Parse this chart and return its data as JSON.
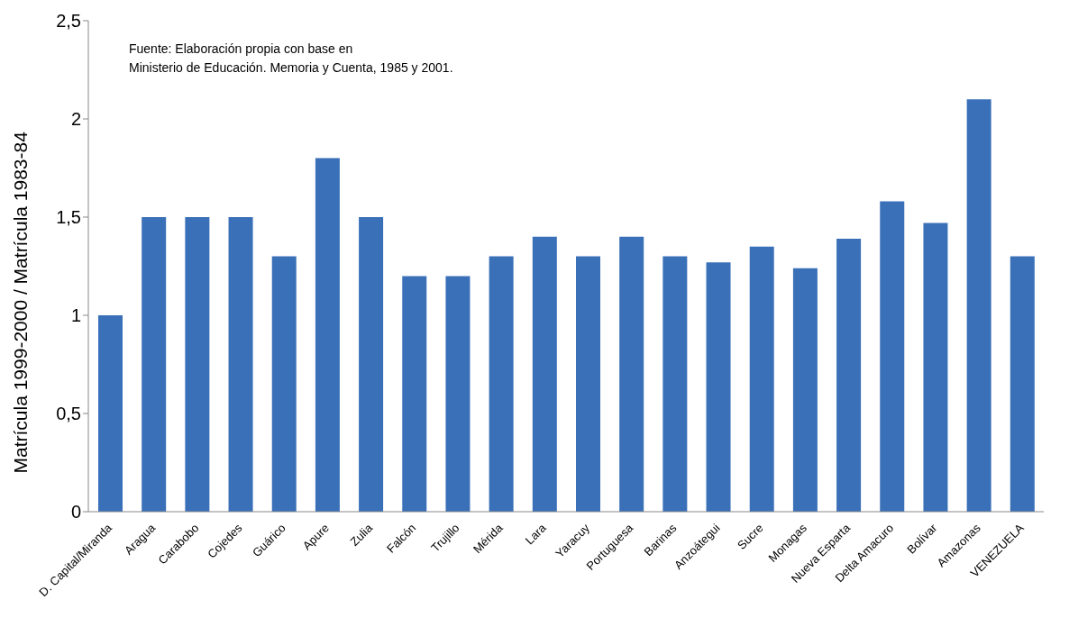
{
  "chart_data": {
    "type": "bar",
    "ylabel": "Matrícula 1999-2000 / Matrícula 1983-84",
    "annotations": [
      "Fuente: Elaboración propia con base en",
      "Ministerio de Educación. Memoria y Cuenta, 1985 y 2001."
    ],
    "categories": [
      "D. Capital/Miranda",
      "Aragua",
      "Carabobo",
      "Cojedes",
      "Guárico",
      "Apure",
      "Zulia",
      "Falcón",
      "Trujillo",
      "Mérida",
      "Lara",
      "Yaracuy",
      "Portuguesa",
      "Barinas",
      "Anzoátegui",
      "Sucre",
      "Monagas",
      "Nueva Esparta",
      "Delta Amacuro",
      "Bolívar",
      "Amazonas",
      "VENEZUELA"
    ],
    "values": [
      1.0,
      1.5,
      1.5,
      1.5,
      1.3,
      1.8,
      1.5,
      1.2,
      1.2,
      1.3,
      1.4,
      1.3,
      1.4,
      1.3,
      1.27,
      1.35,
      1.24,
      1.39,
      1.58,
      1.47,
      2.1,
      1.3
    ],
    "color": "#3a70b8",
    "ylim": [
      0,
      2.5
    ],
    "yticks": [
      0,
      {
        "value": 0.5,
        "label": "0,5"
      },
      1,
      {
        "value": 1.5,
        "label": "1,5"
      },
      2,
      {
        "value": 2.5,
        "label": "2,5"
      }
    ],
    "grid": false
  }
}
